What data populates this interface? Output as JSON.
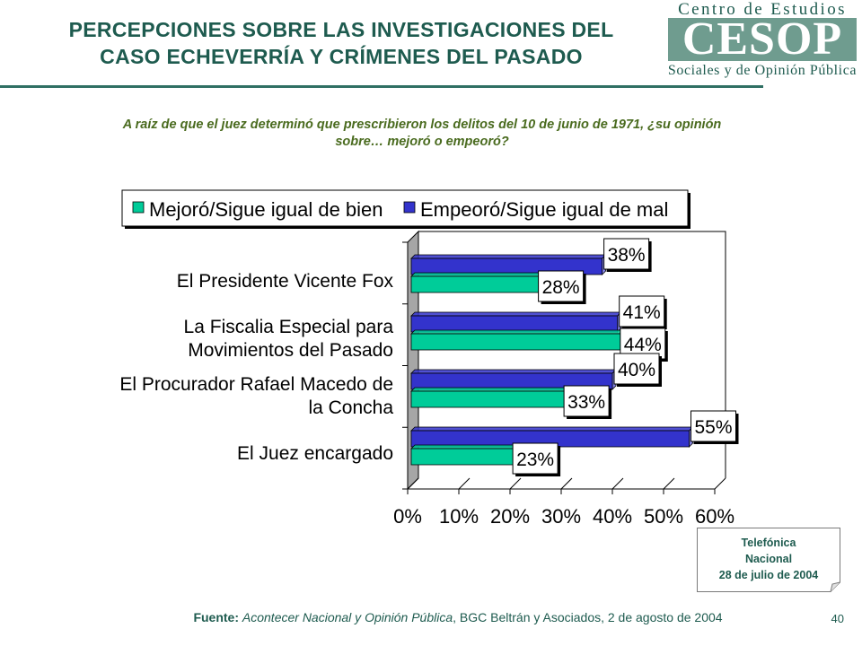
{
  "header": {
    "title_line1": "PERCEPCIONES SOBRE LAS INVESTIGACIONES DEL",
    "title_line2": "CASO ECHEVERRÍA Y CRÍMENES DEL PASADO"
  },
  "logo": {
    "top": "Centro de Estudios",
    "word": "CESOP",
    "bottom": "Sociales y de Opinión Pública"
  },
  "question": {
    "line1": "A raíz de que el juez determinó que prescribieron los delitos del 10 de junio de 1971, ¿su opinión",
    "line2": "sobre… mejoró o empeoró?"
  },
  "colors": {
    "mejoro": "#00cc99",
    "empeoro": "#3333cc",
    "text": "#1e5b4f",
    "question": "#4a6b1f",
    "wall": "#a6a6a6"
  },
  "chart_data": {
    "type": "bar",
    "orientation": "horizontal",
    "categories": [
      [
        "El Presidente Vicente Fox"
      ],
      [
        "La Fiscalia Especial para",
        "Movimientos del Pasado"
      ],
      [
        "El Procurador Rafael Macedo de",
        "la Concha"
      ],
      [
        "El Juez encargado"
      ]
    ],
    "series": [
      {
        "name": "Mejoró/Sigue igual de bien",
        "values": [
          28,
          44,
          33,
          23
        ],
        "labels": [
          "28%",
          "44%",
          "33%",
          "23%"
        ]
      },
      {
        "name": "Empeoró/Sigue igual de mal",
        "values": [
          38,
          41,
          40,
          55
        ],
        "labels": [
          "38%",
          "41%",
          "40%",
          "55%"
        ]
      }
    ],
    "xlim": [
      0,
      60
    ],
    "xticks": [
      "0%",
      "10%",
      "20%",
      "30%",
      "40%",
      "50%",
      "60%"
    ],
    "legend_position": "top",
    "style": "3d"
  },
  "note": {
    "line1": "Telefónica",
    "line2": "Nacional",
    "line3": "28 de julio de 2004"
  },
  "footer": {
    "source_label": "Fuente:",
    "source_italic": "Acontecer Nacional y Opinión Pública",
    "source_rest": ", BGC Beltrán y Asociados, 2 de agosto de 2004",
    "page_number": "40"
  }
}
